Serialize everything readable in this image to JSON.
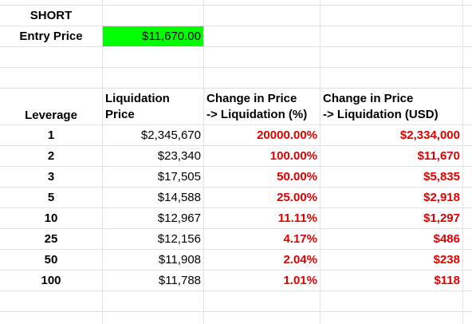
{
  "header": {
    "direction": "SHORT",
    "entry_label": "Entry Price",
    "entry_value": "$11,670.00"
  },
  "columns": {
    "leverage": "Leverage",
    "liq_price_1": "Liquidation",
    "liq_price_2": "Price",
    "pct_1": "Change in Price",
    "pct_2": "-> Liquidation (%)",
    "usd_1": "Change in Price",
    "usd_2": "-> Liquidation (USD)"
  },
  "rows": [
    {
      "leverage": "1",
      "liq_price": "$2,345,670",
      "pct": "20000.00%",
      "usd": "$2,334,000"
    },
    {
      "leverage": "2",
      "liq_price": "$23,340",
      "pct": "100.00%",
      "usd": "$11,670"
    },
    {
      "leverage": "3",
      "liq_price": "$17,505",
      "pct": "50.00%",
      "usd": "$5,835"
    },
    {
      "leverage": "5",
      "liq_price": "$14,588",
      "pct": "25.00%",
      "usd": "$2,918"
    },
    {
      "leverage": "10",
      "liq_price": "$12,967",
      "pct": "11.11%",
      "usd": "$1,297"
    },
    {
      "leverage": "25",
      "liq_price": "$12,156",
      "pct": "4.17%",
      "usd": "$486"
    },
    {
      "leverage": "50",
      "liq_price": "$11,908",
      "pct": "2.04%",
      "usd": "$238"
    },
    {
      "leverage": "100",
      "liq_price": "$11,788",
      "pct": "1.01%",
      "usd": "$118"
    }
  ],
  "colors": {
    "entry_fill": "#00ff00",
    "negative_text": "#e00000",
    "gridline": "#e2e2e2"
  }
}
